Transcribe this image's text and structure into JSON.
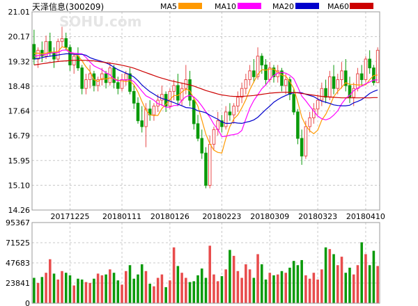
{
  "header": {
    "stock_name": "天泽信息",
    "stock_code": "(300209)"
  },
  "watermark": "SOHU.com",
  "legend": [
    {
      "label": "MA5",
      "color": "#FF9900"
    },
    {
      "label": "MA10",
      "color": "#FF00FF"
    },
    {
      "label": "MA20",
      "color": "#0000CC"
    },
    {
      "label": "MA60",
      "color": "#CC0000"
    }
  ],
  "colors": {
    "up": "#E84C4C",
    "down": "#0A9A0A",
    "grid": "#C8C8C8",
    "border": "#9A9A9A"
  },
  "chart_data": [
    {
      "type": "candlestick",
      "title": "天泽信息(300209)",
      "y_ticks": [
        "21.01",
        "20.17",
        "19.32",
        "18.48",
        "17.64",
        "16.79",
        "15.95",
        "15.10",
        "14.26"
      ],
      "ylim": [
        14.26,
        21.01
      ],
      "x_ticks": [
        {
          "label": "20171225",
          "index": 9
        },
        {
          "label": "20180111",
          "index": 22
        },
        {
          "label": "20180126",
          "index": 34
        },
        {
          "label": "20180223",
          "index": 47
        },
        {
          "label": "20180309",
          "index": 59
        },
        {
          "label": "20180323",
          "index": 71
        },
        {
          "label": "20180410",
          "index": 83
        }
      ],
      "candles": [
        [
          19.9,
          20.4,
          19.2,
          19.4
        ],
        [
          19.4,
          19.8,
          19.1,
          19.7
        ],
        [
          19.7,
          20.0,
          19.3,
          19.5
        ],
        [
          19.5,
          20.2,
          19.4,
          20.0
        ],
        [
          20.0,
          20.3,
          19.5,
          19.6
        ],
        [
          19.6,
          19.8,
          19.1,
          19.4
        ],
        [
          19.4,
          20.1,
          19.3,
          20.0
        ],
        [
          20.0,
          20.5,
          19.8,
          20.1
        ],
        [
          20.1,
          20.3,
          19.7,
          19.8
        ],
        [
          19.8,
          19.9,
          19.0,
          19.2
        ],
        [
          19.2,
          19.6,
          18.9,
          19.5
        ],
        [
          19.5,
          19.8,
          19.0,
          19.1
        ],
        [
          19.1,
          19.2,
          18.2,
          18.4
        ],
        [
          18.4,
          18.9,
          18.2,
          18.7
        ],
        [
          18.7,
          19.2,
          18.4,
          18.9
        ],
        [
          18.9,
          19.0,
          18.3,
          18.5
        ],
        [
          18.5,
          18.8,
          18.3,
          18.7
        ],
        [
          18.7,
          19.1,
          18.5,
          18.9
        ],
        [
          18.9,
          19.0,
          18.4,
          18.6
        ],
        [
          18.6,
          19.3,
          18.5,
          19.1
        ],
        [
          19.1,
          19.2,
          18.4,
          18.6
        ],
        [
          18.6,
          18.8,
          18.2,
          18.4
        ],
        [
          18.4,
          18.9,
          18.3,
          18.7
        ],
        [
          18.7,
          19.0,
          18.5,
          18.9
        ],
        [
          18.9,
          19.1,
          18.2,
          18.3
        ],
        [
          18.3,
          18.5,
          17.7,
          17.9
        ],
        [
          17.9,
          18.1,
          17.2,
          17.3
        ],
        [
          17.3,
          17.8,
          16.9,
          17.1
        ],
        [
          17.1,
          17.9,
          16.4,
          17.7
        ],
        [
          17.7,
          18.0,
          17.3,
          17.5
        ],
        [
          17.5,
          17.9,
          17.3,
          17.8
        ],
        [
          17.8,
          18.2,
          17.6,
          18.0
        ],
        [
          18.0,
          18.5,
          17.8,
          18.2
        ],
        [
          18.2,
          18.3,
          17.6,
          17.8
        ],
        [
          17.8,
          18.4,
          17.7,
          18.3
        ],
        [
          18.3,
          18.7,
          18.0,
          18.5
        ],
        [
          18.5,
          18.9,
          17.8,
          18.0
        ],
        [
          18.0,
          18.6,
          17.8,
          18.4
        ],
        [
          18.4,
          19.2,
          18.2,
          18.7
        ],
        [
          18.7,
          19.0,
          17.8,
          18.0
        ],
        [
          18.0,
          18.1,
          17.0,
          17.2
        ],
        [
          17.2,
          17.5,
          16.6,
          16.7
        ],
        [
          16.7,
          17.0,
          16.0,
          16.2
        ],
        [
          16.2,
          16.4,
          15.0,
          15.1
        ],
        [
          15.1,
          16.8,
          15.0,
          16.5
        ],
        [
          16.5,
          17.1,
          16.3,
          17.0
        ],
        [
          17.0,
          17.6,
          16.8,
          17.3
        ],
        [
          17.3,
          17.5,
          16.9,
          17.1
        ],
        [
          17.1,
          17.8,
          17.0,
          17.6
        ],
        [
          17.6,
          17.9,
          17.3,
          17.5
        ],
        [
          17.5,
          17.9,
          17.2,
          17.8
        ],
        [
          17.8,
          18.3,
          17.6,
          18.1
        ],
        [
          18.1,
          18.6,
          17.9,
          18.4
        ],
        [
          18.4,
          18.9,
          18.2,
          18.7
        ],
        [
          18.7,
          19.2,
          18.5,
          19.0
        ],
        [
          19.0,
          19.4,
          18.6,
          18.8
        ],
        [
          18.8,
          19.8,
          18.7,
          19.5
        ],
        [
          19.5,
          19.6,
          18.9,
          19.2
        ],
        [
          19.2,
          19.4,
          18.5,
          18.7
        ],
        [
          18.7,
          19.3,
          18.6,
          19.1
        ],
        [
          19.1,
          19.2,
          18.6,
          18.8
        ],
        [
          18.8,
          19.2,
          18.6,
          19.0
        ],
        [
          19.0,
          19.1,
          18.3,
          18.5
        ],
        [
          18.5,
          18.9,
          18.2,
          18.7
        ],
        [
          18.7,
          18.8,
          18.0,
          18.2
        ],
        [
          18.2,
          18.4,
          17.5,
          17.6
        ],
        [
          17.6,
          17.7,
          16.5,
          16.7
        ],
        [
          16.7,
          17.0,
          15.8,
          16.1
        ],
        [
          16.1,
          17.3,
          16.0,
          17.1
        ],
        [
          17.1,
          17.6,
          16.9,
          17.4
        ],
        [
          17.4,
          17.9,
          17.2,
          17.7
        ],
        [
          17.7,
          18.2,
          17.5,
          18.0
        ],
        [
          18.0,
          18.6,
          17.8,
          18.4
        ],
        [
          18.4,
          18.7,
          17.9,
          18.1
        ],
        [
          18.1,
          19.0,
          18.0,
          18.8
        ],
        [
          18.8,
          19.2,
          18.2,
          18.4
        ],
        [
          18.4,
          18.9,
          18.2,
          18.7
        ],
        [
          18.7,
          19.3,
          18.4,
          19.0
        ],
        [
          19.0,
          19.4,
          18.3,
          18.5
        ],
        [
          18.5,
          18.8,
          17.9,
          18.1
        ],
        [
          18.1,
          18.6,
          17.8,
          18.4
        ],
        [
          18.4,
          19.1,
          18.3,
          18.9
        ],
        [
          18.9,
          19.2,
          18.5,
          18.7
        ],
        [
          18.7,
          19.5,
          18.6,
          19.4
        ],
        [
          19.4,
          19.7,
          18.9,
          19.1
        ],
        [
          19.1,
          19.2,
          18.5,
          18.6
        ],
        [
          18.6,
          19.8,
          18.6,
          19.7
        ]
      ],
      "ma_lines": [
        {
          "name": "MA5",
          "color": "#FF9900",
          "values": [
            19.6,
            19.6,
            19.58,
            19.6,
            19.64,
            19.64,
            19.66,
            19.82,
            19.78,
            19.62,
            19.56,
            19.52,
            19.34,
            19.14,
            18.98,
            18.7,
            18.64,
            18.74,
            18.72,
            18.76,
            18.74,
            18.68,
            18.66,
            18.64,
            18.66,
            18.52,
            18.28,
            17.96,
            17.66,
            17.5,
            17.48,
            17.48,
            17.72,
            17.86,
            18.02,
            18.16,
            18.16,
            18.28,
            18.38,
            18.32,
            18.06,
            17.8,
            17.32,
            16.84,
            16.52,
            16.3,
            16.22,
            16.2,
            16.7,
            17.1,
            17.36,
            17.5,
            17.74,
            18.02,
            18.36,
            18.62,
            18.88,
            19.04,
            19.02,
            19.06,
            19.06,
            18.96,
            18.86,
            18.82,
            18.64,
            18.4,
            17.94,
            17.42,
            17.14,
            16.96,
            16.86,
            16.98,
            17.32,
            17.52,
            17.8,
            18.12,
            18.3,
            18.44,
            18.6,
            18.54,
            18.54,
            18.52,
            18.52,
            18.52,
            18.7,
            18.84,
            18.86
          ]
        },
        {
          "name": "MA10",
          "color": "#FF00FF",
          "values": [
            19.5,
            19.52,
            19.54,
            19.56,
            19.6,
            19.62,
            19.62,
            19.7,
            19.71,
            19.63,
            19.6,
            19.59,
            19.58,
            19.46,
            19.3,
            19.17,
            19.1,
            19.04,
            18.93,
            18.87,
            18.72,
            18.66,
            18.7,
            18.68,
            18.71,
            18.63,
            18.48,
            18.31,
            18.15,
            18.08,
            18.0,
            17.88,
            17.84,
            17.76,
            17.76,
            17.82,
            17.82,
            18.0,
            18.12,
            18.17,
            18.11,
            17.98,
            17.8,
            17.61,
            17.42,
            17.18,
            17.01,
            16.76,
            16.77,
            16.81,
            16.83,
            16.86,
            16.97,
            17.36,
            17.73,
            17.99,
            18.19,
            18.39,
            18.52,
            18.71,
            18.84,
            18.92,
            18.95,
            18.92,
            18.85,
            18.73,
            18.45,
            18.14,
            17.98,
            17.8,
            17.63,
            17.46,
            17.37,
            17.33,
            17.38,
            17.49,
            17.64,
            17.88,
            18.06,
            18.17,
            18.33,
            18.41,
            18.48,
            18.56,
            18.62,
            18.69,
            18.69
          ]
        },
        {
          "name": "MA20",
          "color": "#0000CC",
          "values": [
            19.4,
            19.42,
            19.45,
            19.48,
            19.5,
            19.52,
            19.54,
            19.56,
            19.58,
            19.58,
            19.56,
            19.56,
            19.56,
            19.53,
            19.45,
            19.4,
            19.36,
            19.32,
            19.27,
            19.21,
            19.12,
            19.04,
            18.98,
            18.92,
            18.87,
            18.79,
            18.67,
            18.52,
            18.4,
            18.29,
            18.21,
            18.12,
            18.06,
            18.02,
            17.97,
            17.92,
            17.86,
            17.81,
            17.75,
            17.74,
            17.71,
            17.64,
            17.61,
            17.57,
            17.49,
            17.42,
            17.35,
            17.26,
            17.21,
            17.21,
            17.24,
            17.22,
            17.21,
            17.25,
            17.28,
            17.33,
            17.42,
            17.55,
            17.68,
            17.8,
            17.93,
            18.02,
            18.1,
            18.16,
            18.22,
            18.25,
            18.26,
            18.25,
            18.2,
            18.16,
            18.12,
            18.04,
            17.97,
            17.93,
            17.89,
            17.84,
            17.82,
            17.81,
            17.81,
            17.83,
            17.91,
            17.96,
            18.02,
            18.12,
            18.23,
            18.3,
            18.35
          ]
        },
        {
          "name": "MA60",
          "color": "#CC0000",
          "values": [
            19.2,
            19.22,
            19.24,
            19.26,
            19.28,
            19.3,
            19.32,
            19.33,
            19.34,
            19.35,
            19.36,
            19.36,
            19.36,
            19.36,
            19.35,
            19.34,
            19.32,
            19.3,
            19.28,
            19.26,
            19.24,
            19.22,
            19.19,
            19.16,
            19.13,
            19.09,
            19.04,
            18.99,
            18.94,
            18.89,
            18.84,
            18.79,
            18.75,
            18.71,
            18.67,
            18.64,
            18.61,
            18.58,
            18.55,
            18.52,
            18.48,
            18.43,
            18.38,
            18.33,
            18.29,
            18.25,
            18.21,
            18.18,
            18.16,
            18.14,
            18.13,
            18.13,
            18.13,
            18.14,
            18.15,
            18.16,
            18.18,
            18.2,
            18.22,
            18.24,
            18.25,
            18.26,
            18.27,
            18.27,
            18.27,
            18.26,
            18.25,
            18.23,
            18.21,
            18.19,
            18.17,
            18.15,
            18.13,
            18.12,
            18.11,
            18.1,
            18.09,
            18.08,
            18.08,
            18.08,
            18.08,
            18.08,
            18.08,
            18.08,
            18.08,
            18.09,
            18.09
          ]
        }
      ]
    },
    {
      "type": "bar",
      "y_ticks": [
        "95367",
        "71525",
        "47683",
        "23841",
        "0"
      ],
      "ylim": [
        0,
        95367
      ],
      "volumes": [
        30000,
        24000,
        31000,
        36000,
        52000,
        35000,
        28000,
        38000,
        36000,
        33000,
        21000,
        29000,
        28000,
        25000,
        24000,
        29000,
        35000,
        33000,
        34000,
        40000,
        36000,
        27000,
        22000,
        38000,
        45000,
        29000,
        34000,
        46000,
        38000,
        23000,
        20000,
        30000,
        34000,
        19000,
        27000,
        66000,
        44000,
        36000,
        30000,
        25000,
        26000,
        33000,
        41000,
        30000,
        68000,
        34000,
        26000,
        32000,
        40000,
        63000,
        56000,
        38000,
        30000,
        46000,
        40000,
        30000,
        58000,
        46000,
        28000,
        36000,
        33000,
        34000,
        38000,
        36000,
        42000,
        50000,
        45000,
        51000,
        33000,
        29000,
        36000,
        28000,
        40000,
        66000,
        64000,
        58000,
        45000,
        55000,
        36000,
        42000,
        34000,
        45000,
        72000,
        58000,
        45000,
        62000,
        44000
      ],
      "up_flags": [
        false,
        true,
        false,
        true,
        true,
        false,
        true,
        true,
        false,
        false,
        true,
        false,
        false,
        true,
        true,
        false,
        true,
        true,
        false,
        true,
        false,
        false,
        true,
        true,
        false,
        false,
        false,
        false,
        true,
        false,
        true,
        true,
        true,
        false,
        true,
        true,
        false,
        true,
        true,
        false,
        false,
        false,
        false,
        false,
        true,
        true,
        true,
        false,
        true,
        false,
        true,
        true,
        true,
        true,
        true,
        false,
        true,
        false,
        false,
        true,
        false,
        true,
        false,
        true,
        false,
        false,
        false,
        false,
        true,
        true,
        true,
        true,
        true,
        false,
        true,
        false,
        true,
        true,
        false,
        false,
        true,
        true,
        false,
        true,
        false,
        false,
        true
      ]
    }
  ]
}
